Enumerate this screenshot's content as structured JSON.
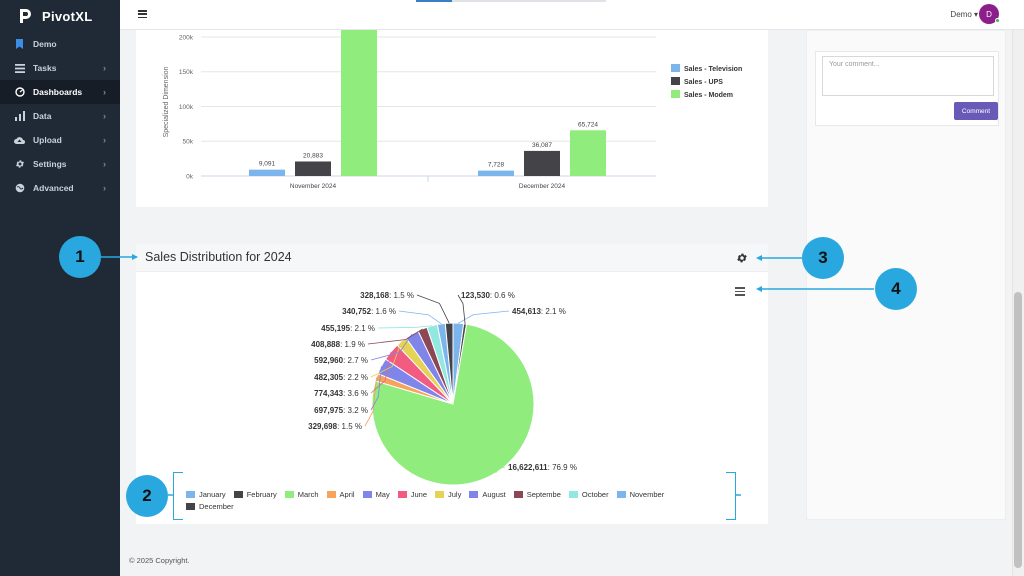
{
  "app": {
    "brand": "PivotXL"
  },
  "sidebar": {
    "items": [
      {
        "label": "Demo",
        "icon": "bookmark-icon",
        "chevron": ""
      },
      {
        "label": "Tasks",
        "icon": "tasks-icon",
        "chevron": "›"
      },
      {
        "label": "Dashboards",
        "icon": "dashboard-icon",
        "chevron": "›"
      },
      {
        "label": "Data",
        "icon": "data-icon",
        "chevron": "›"
      },
      {
        "label": "Upload",
        "icon": "upload-icon",
        "chevron": "›"
      },
      {
        "label": "Settings",
        "icon": "gear-icon",
        "chevron": "›"
      },
      {
        "label": "Advanced",
        "icon": "globe-icon",
        "chevron": "›"
      }
    ],
    "active": "Dashboards"
  },
  "topbar": {
    "user": "Demo ▾",
    "avatar_letter": "D"
  },
  "comments": {
    "placeholder": "Your comment...",
    "button": "Comment"
  },
  "chart_data": [
    {
      "type": "bar",
      "title": "",
      "ylabel": "Specialized Dimension",
      "ylim": [
        0,
        210000
      ],
      "yticks": [
        "0k",
        "50k",
        "100k",
        "150k",
        "200k"
      ],
      "categories": [
        "November 2024",
        "December 2024"
      ],
      "series": [
        {
          "name": "Sales - Television",
          "color": "#7cb5ec",
          "values": [
            9091,
            7728
          ],
          "labels": [
            "9,091",
            "7,728"
          ]
        },
        {
          "name": "Sales - UPS",
          "color": "#434348",
          "values": [
            20883,
            36087
          ],
          "labels": [
            "20,883",
            "36,087"
          ]
        },
        {
          "name": "Sales - Modem",
          "color": "#90ed7d",
          "values": [
            210000,
            65724
          ],
          "labels": [
            "",
            "65,724"
          ]
        }
      ]
    },
    {
      "type": "pie",
      "title": "Sales Distribution for 2024",
      "slices": [
        {
          "name": "January",
          "value": 454613,
          "label": "454,613",
          "pct": "2.1 %",
          "color": "#7cb5ec"
        },
        {
          "name": "February",
          "value": 123530,
          "label": "123,530",
          "pct": "0.6 %",
          "color": "#434348"
        },
        {
          "name": "March",
          "value": 16622611,
          "label": "16,622,611",
          "pct": "76.9 %",
          "color": "#90ed7d"
        },
        {
          "name": "April",
          "value": 329698,
          "label": "329,698",
          "pct": "1.5 %",
          "color": "#f7a35c"
        },
        {
          "name": "May",
          "value": 697975,
          "label": "697,975",
          "pct": "3.2 %",
          "color": "#8085e9"
        },
        {
          "name": "June",
          "value": 774343,
          "label": "774,343",
          "pct": "3.6 %",
          "color": "#f15c80"
        },
        {
          "name": "July",
          "value": 482305,
          "label": "482,305",
          "pct": "2.2 %",
          "color": "#e4d354"
        },
        {
          "name": "August",
          "value": 592960,
          "label": "592,960",
          "pct": "2.7 %",
          "color": "#8085e8"
        },
        {
          "name": "Septembe",
          "value": 408888,
          "label": "408,888",
          "pct": "1.9 %",
          "color": "#8d4653"
        },
        {
          "name": "October",
          "value": 455195,
          "label": "455,195",
          "pct": "2.1 %",
          "color": "#91e8e1"
        },
        {
          "name": "November",
          "value": 340752,
          "label": "340,752",
          "pct": "1.6 %",
          "color": "#7cb5ec"
        },
        {
          "name": "December",
          "value": 328168,
          "label": "328,168",
          "pct": "1.5 %",
          "color": "#434348"
        }
      ]
    }
  ],
  "callouts": [
    "1",
    "2",
    "3",
    "4"
  ],
  "footer": "© 2025 Copyright."
}
